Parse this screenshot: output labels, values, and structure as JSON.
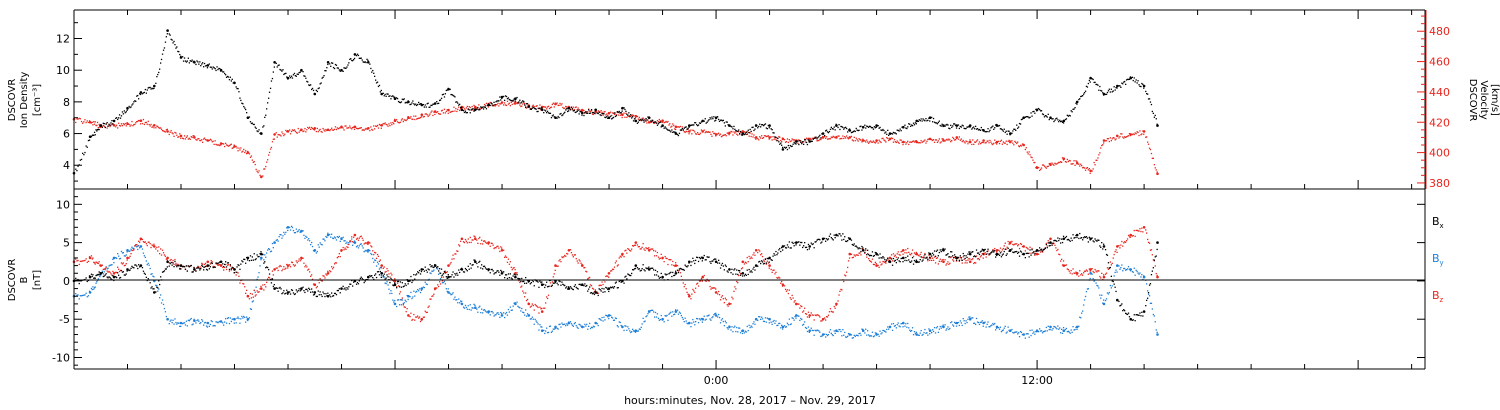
{
  "chart_data": [
    {
      "type": "scatter",
      "panel": "top",
      "left_axis": {
        "label_lines": [
          "DSCOVR",
          "Ion Density",
          "[cm⁻³]"
        ],
        "ylim": [
          2.5,
          13.8
        ],
        "ticks": [
          4,
          6,
          8,
          10,
          12
        ],
        "color": "#000000"
      },
      "right_axis": {
        "label_lines": [
          "DSCOVR",
          "Velocity",
          "[km/s]"
        ],
        "ylim": [
          376,
          494
        ],
        "ticks": [
          380,
          400,
          420,
          440,
          460,
          480
        ],
        "color": "#e8261e"
      },
      "series": [
        {
          "axis": "left",
          "color": "#000000",
          "x": [
            -24.0,
            -23.4,
            -23.0,
            -22.5,
            -22.0,
            -21.5,
            -21.0,
            -20.5,
            -20.0,
            -19.5,
            -19.0,
            -18.5,
            -18.0,
            -17.5,
            -17.0,
            -16.5,
            -16.0,
            -15.5,
            -15.0,
            -14.5,
            -14.0,
            -13.5,
            -13.0,
            -12.5,
            -12.0,
            -11.5,
            -11.0,
            -10.5,
            -10.0,
            -9.5,
            -9.0,
            -8.5,
            -8.0,
            -7.5,
            -7.0,
            -6.5,
            -6.0,
            -5.5,
            -5.0,
            -4.5,
            -4.0,
            -3.5,
            -3.0,
            -2.5,
            -2.0,
            -1.5,
            -1.0,
            -0.5,
            0.0,
            0.5,
            1.0,
            1.5,
            2.0,
            2.5,
            3.0,
            3.5,
            4.0,
            4.5,
            5.0,
            5.5,
            6.0,
            6.5,
            7.0,
            7.5,
            8.0,
            8.5,
            9.0,
            9.5,
            10.0,
            10.5,
            11.0,
            11.5,
            12.0,
            12.5,
            13.0,
            13.5,
            14.0,
            14.5,
            15.0,
            15.5,
            16.0,
            16.5
          ],
          "y": [
            3.5,
            5.8,
            6.5,
            6.8,
            7.6,
            8.6,
            9.0,
            12.5,
            10.8,
            10.5,
            10.3,
            10.0,
            9.2,
            7.0,
            6.0,
            10.5,
            9.5,
            10.0,
            8.5,
            10.5,
            10.0,
            11.0,
            10.5,
            8.5,
            8.2,
            8.0,
            7.8,
            7.9,
            8.8,
            7.5,
            7.5,
            7.8,
            8.3,
            8.2,
            7.7,
            7.5,
            7.0,
            7.6,
            7.3,
            7.5,
            7.0,
            7.6,
            6.8,
            7.0,
            6.5,
            6.0,
            6.5,
            6.8,
            7.0,
            6.5,
            6.0,
            6.5,
            6.5,
            5.0,
            5.5,
            5.5,
            6.0,
            6.5,
            6.2,
            6.4,
            6.5,
            6.0,
            6.4,
            6.8,
            7.0,
            6.5,
            6.5,
            6.5,
            6.2,
            6.5,
            6.0,
            7.0,
            7.5,
            7.0,
            6.8,
            8.0,
            9.5,
            8.5,
            9.0,
            9.5,
            9.0,
            6.5
          ]
        },
        {
          "axis": "right",
          "color": "#e8261e",
          "x": [
            -24.0,
            -23.4,
            -23.0,
            -22.5,
            -22.0,
            -21.5,
            -21.0,
            -20.5,
            -20.0,
            -19.5,
            -19.0,
            -18.5,
            -18.0,
            -17.5,
            -17.0,
            -16.5,
            -16.0,
            -15.5,
            -15.0,
            -14.5,
            -14.0,
            -13.5,
            -13.0,
            -12.5,
            -12.0,
            -11.5,
            -11.0,
            -10.5,
            -10.0,
            -9.5,
            -9.0,
            -8.5,
            -8.0,
            -7.5,
            -7.0,
            -6.5,
            -6.0,
            -5.5,
            -5.0,
            -4.5,
            -4.0,
            -3.5,
            -3.0,
            -2.5,
            -2.0,
            -1.5,
            -1.0,
            -0.5,
            0.0,
            0.5,
            1.0,
            1.5,
            2.0,
            2.5,
            3.0,
            3.5,
            4.0,
            4.5,
            5.0,
            5.5,
            6.0,
            6.5,
            7.0,
            7.5,
            8.0,
            8.5,
            9.0,
            9.5,
            10.0,
            10.5,
            11.0,
            11.5,
            12.0,
            12.5,
            13.0,
            13.5,
            14.0,
            14.5,
            15.0,
            15.5,
            16.0,
            16.5
          ],
          "y": [
            422,
            420,
            418,
            418,
            419,
            421,
            418,
            414,
            411,
            410,
            408,
            406,
            404,
            400,
            384,
            412,
            414,
            415,
            416,
            415,
            417,
            417,
            416,
            418,
            421,
            423,
            425,
            427,
            428,
            430,
            430,
            432,
            433,
            433,
            431,
            430,
            432,
            430,
            428,
            427,
            426,
            425,
            424,
            420,
            421,
            417,
            414,
            414,
            412,
            413,
            414,
            410,
            410,
            409,
            408,
            409,
            410,
            410,
            410,
            408,
            408,
            409,
            407,
            407,
            409,
            408,
            410,
            407,
            408,
            407,
            407,
            405,
            390,
            392,
            396,
            393,
            388,
            408,
            411,
            412,
            414,
            386
          ]
        }
      ]
    },
    {
      "type": "scatter",
      "panel": "bottom",
      "left_axis": {
        "label_lines": [
          "DSCOVR",
          "B",
          "[nT]"
        ],
        "ylim": [
          -11.5,
          12
        ],
        "ticks": [
          -10,
          -5,
          0,
          5,
          10
        ],
        "color": "#000000"
      },
      "legend_position": "right",
      "series": [
        {
          "name": "Bx",
          "color": "#000000",
          "x": [
            -24.0,
            -23.4,
            -23.0,
            -22.5,
            -22.0,
            -21.5,
            -21.0,
            -20.5,
            -20.0,
            -19.5,
            -19.0,
            -18.5,
            -18.0,
            -17.5,
            -17.0,
            -16.5,
            -16.0,
            -15.5,
            -15.0,
            -14.5,
            -14.0,
            -13.5,
            -13.0,
            -12.5,
            -12.0,
            -11.5,
            -11.0,
            -10.5,
            -10.0,
            -9.5,
            -9.0,
            -8.5,
            -8.0,
            -7.5,
            -7.0,
            -6.5,
            -6.0,
            -5.5,
            -5.0,
            -4.5,
            -4.0,
            -3.5,
            -3.0,
            -2.5,
            -2.0,
            -1.5,
            -1.0,
            -0.5,
            0.0,
            0.5,
            1.0,
            1.5,
            2.0,
            2.5,
            3.0,
            3.5,
            4.0,
            4.5,
            5.0,
            5.5,
            6.0,
            6.5,
            7.0,
            7.5,
            8.0,
            8.5,
            9.0,
            9.5,
            10.0,
            10.5,
            11.0,
            11.5,
            12.0,
            12.5,
            13.0,
            13.5,
            14.0,
            14.5,
            15.0,
            15.5,
            16.0,
            16.5
          ],
          "y": [
            0.0,
            0.5,
            1.0,
            0.5,
            1.5,
            2.0,
            -1.5,
            2.5,
            2.0,
            1.5,
            2.0,
            2.5,
            1.5,
            3.0,
            3.5,
            -1.0,
            -1.5,
            -1.0,
            -1.5,
            -2.0,
            -1.0,
            0.0,
            0.5,
            1.0,
            -0.5,
            0.0,
            1.5,
            2.0,
            0.5,
            1.5,
            2.5,
            1.5,
            1.0,
            0.5,
            0.0,
            -0.5,
            0.0,
            -1.0,
            -0.5,
            -1.5,
            -1.0,
            0.0,
            2.0,
            1.5,
            0.5,
            1.0,
            2.5,
            3.0,
            2.5,
            1.5,
            1.0,
            2.0,
            3.0,
            4.5,
            5.0,
            4.5,
            5.5,
            6.0,
            5.5,
            4.0,
            3.5,
            2.5,
            3.0,
            2.5,
            3.5,
            4.0,
            3.0,
            3.5,
            4.0,
            3.5,
            4.0,
            3.5,
            4.0,
            5.0,
            5.5,
            6.0,
            5.5,
            4.5,
            -2.5,
            -5.0,
            -4.0,
            5.0
          ]
        },
        {
          "name": "By",
          "color": "#1f7fd6",
          "x": [
            -24.0,
            -23.4,
            -23.0,
            -22.5,
            -22.0,
            -21.5,
            -21.0,
            -20.5,
            -20.0,
            -19.5,
            -19.0,
            -18.5,
            -18.0,
            -17.5,
            -17.0,
            -16.5,
            -16.0,
            -15.5,
            -15.0,
            -14.5,
            -14.0,
            -13.5,
            -13.0,
            -12.5,
            -12.0,
            -11.5,
            -11.0,
            -10.5,
            -10.0,
            -9.5,
            -9.0,
            -8.5,
            -8.0,
            -7.5,
            -7.0,
            -6.5,
            -6.0,
            -5.5,
            -5.0,
            -4.5,
            -4.0,
            -3.5,
            -3.0,
            -2.5,
            -2.0,
            -1.5,
            -1.0,
            -0.5,
            0.0,
            0.5,
            1.0,
            1.5,
            2.0,
            2.5,
            3.0,
            3.5,
            4.0,
            4.5,
            5.0,
            5.5,
            6.0,
            6.5,
            7.0,
            7.5,
            8.0,
            8.5,
            9.0,
            9.5,
            10.0,
            10.5,
            11.0,
            11.5,
            12.0,
            12.5,
            13.0,
            13.5,
            14.0,
            14.5,
            15.0,
            15.5,
            16.0,
            16.5
          ],
          "y": [
            -2.0,
            -1.5,
            1.0,
            3.0,
            4.0,
            4.5,
            0.0,
            -5.0,
            -5.5,
            -5.2,
            -5.5,
            -5.3,
            -5.0,
            -5.0,
            3.0,
            5.0,
            7.0,
            6.5,
            4.0,
            6.0,
            5.5,
            5.0,
            4.0,
            1.0,
            -3.0,
            -2.0,
            -1.0,
            2.0,
            -1.5,
            -3.0,
            -3.5,
            -4.0,
            -4.5,
            -3.0,
            -4.5,
            -6.5,
            -6.0,
            -5.5,
            -6.0,
            -5.5,
            -4.5,
            -6.0,
            -6.5,
            -4.0,
            -5.0,
            -4.0,
            -5.5,
            -5.0,
            -4.5,
            -6.0,
            -6.5,
            -5.0,
            -5.0,
            -6.0,
            -4.5,
            -6.5,
            -7.0,
            -6.5,
            -7.0,
            -6.5,
            -7.0,
            -6.0,
            -5.5,
            -7.0,
            -6.5,
            -6.0,
            -5.5,
            -5.0,
            -5.5,
            -6.0,
            -6.5,
            -7.0,
            -6.5,
            -6.0,
            -6.5,
            -6.0,
            1.0,
            -3.0,
            2.0,
            1.5,
            0.5,
            -7.0
          ]
        },
        {
          "name": "Bz",
          "color": "#e8261e",
          "x": [
            -24.0,
            -23.4,
            -23.0,
            -22.5,
            -22.0,
            -21.5,
            -21.0,
            -20.5,
            -20.0,
            -19.5,
            -19.0,
            -18.5,
            -18.0,
            -17.5,
            -17.0,
            -16.5,
            -16.0,
            -15.5,
            -15.0,
            -14.5,
            -14.0,
            -13.5,
            -13.0,
            -12.5,
            -12.0,
            -11.5,
            -11.0,
            -10.5,
            -10.0,
            -9.5,
            -9.0,
            -8.5,
            -8.0,
            -7.5,
            -7.0,
            -6.5,
            -6.0,
            -5.5,
            -5.0,
            -4.5,
            -4.0,
            -3.5,
            -3.0,
            -2.5,
            -2.0,
            -1.5,
            -1.0,
            -0.5,
            0.0,
            0.5,
            1.0,
            1.5,
            2.0,
            2.5,
            3.0,
            3.5,
            4.0,
            4.5,
            5.0,
            5.5,
            6.0,
            6.5,
            7.0,
            7.5,
            8.0,
            8.5,
            9.0,
            9.5,
            10.0,
            10.5,
            11.0,
            11.5,
            12.0,
            12.5,
            13.0,
            13.5,
            14.0,
            14.5,
            15.0,
            15.5,
            16.0,
            16.5
          ],
          "y": [
            2.5,
            3.0,
            2.0,
            1.0,
            3.0,
            5.5,
            4.5,
            3.0,
            2.0,
            1.5,
            2.5,
            2.0,
            1.5,
            -2.0,
            -1.0,
            1.5,
            2.0,
            3.0,
            -0.5,
            1.0,
            4.0,
            6.0,
            5.0,
            2.0,
            0.0,
            -4.5,
            -5.0,
            -1.0,
            2.0,
            5.5,
            5.5,
            5.0,
            4.0,
            1.0,
            -3.0,
            -4.0,
            2.0,
            4.0,
            2.0,
            -1.5,
            1.0,
            3.5,
            5.0,
            4.0,
            3.0,
            2.0,
            -2.0,
            0.5,
            -1.5,
            -3.0,
            2.5,
            4.0,
            2.0,
            -0.5,
            -3.0,
            -4.5,
            -5.0,
            -3.0,
            3.5,
            4.0,
            2.0,
            3.0,
            4.0,
            3.5,
            3.0,
            2.5,
            3.0,
            2.5,
            3.5,
            4.0,
            5.0,
            4.5,
            3.5,
            5.5,
            2.0,
            1.0,
            1.5,
            0.5,
            4.5,
            6.0,
            7.0,
            0.5
          ]
        }
      ],
      "legend": [
        {
          "base": "B",
          "sub": "x",
          "color": "#000000"
        },
        {
          "base": "B",
          "sub": "y",
          "color": "#1f7fd6"
        },
        {
          "base": "B",
          "sub": "z",
          "color": "#e8261e"
        }
      ]
    }
  ],
  "x_axis": {
    "xlim": [
      -24.0,
      26.5
    ],
    "tick_labels": [
      {
        "at": 0,
        "text": "0:00"
      },
      {
        "at": 12,
        "text": "12:00"
      }
    ],
    "minor_tick_step": 2,
    "label": "hours:minutes, Nov. 28, 2017 – Nov. 29, 2017"
  }
}
